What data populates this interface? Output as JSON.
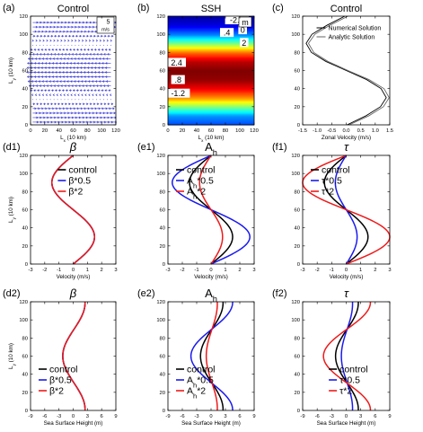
{
  "chart_data": [
    {
      "id": "a",
      "panel_label": "(a)",
      "title": "Control",
      "type": "quiver",
      "xlabel": "Lx (10 km)",
      "ylabel": "Ly (10 km)",
      "xlim": [
        0,
        120
      ],
      "ylim": [
        0,
        120
      ],
      "xticks": [
        0,
        20,
        40,
        60,
        80,
        100,
        120
      ],
      "yticks": [
        0,
        20,
        40,
        60,
        80,
        100,
        120
      ],
      "reference_vector": {
        "value": "5",
        "unit": "m/s"
      },
      "vector_color": "#3a3ad8",
      "field": {
        "velocity": "u(y) = 1.5*cos(2*pi*y/120)",
        "ymin": 0,
        "ymax": 120,
        "umax": 1.5
      }
    },
    {
      "id": "b",
      "panel_label": "(b)",
      "title": "SSH",
      "type": "heatmap",
      "xlabel": "Lx (10 km)",
      "ylabel": "",
      "xlim": [
        0,
        120
      ],
      "ylim": [
        0,
        120
      ],
      "xticks": [
        0,
        20,
        40,
        60,
        80,
        100,
        120
      ],
      "yticks": [
        0,
        20,
        40,
        60,
        80,
        100,
        120
      ],
      "unit_label": "m",
      "contour_labels": [
        "-2.4",
        "0",
        ".4",
        "2",
        "2.4",
        ".8",
        "-1.2"
      ],
      "ssh_profile": {
        "y": [
          0,
          10,
          20,
          30,
          40,
          50,
          60,
          70,
          80,
          90,
          100,
          110,
          120
        ],
        "value": [
          -1.6,
          -1.2,
          0.0,
          1.2,
          2.0,
          2.5,
          2.6,
          2.3,
          1.4,
          0.0,
          -1.3,
          -2.1,
          -2.4
        ]
      },
      "color_range": [
        -2.6,
        2.6
      ]
    },
    {
      "id": "c",
      "panel_label": "(c)",
      "title": "Control",
      "type": "line",
      "xlabel": "Zonal Velocity (m/s)",
      "ylabel": "",
      "xlim": [
        -1.5,
        1.5
      ],
      "ylim": [
        0,
        120
      ],
      "xticks": [
        -1.5,
        -1.0,
        -0.5,
        0.0,
        0.5,
        1.0,
        1.5
      ],
      "yticks": [
        0,
        20,
        40,
        60,
        80,
        100,
        120
      ],
      "legend": "top-right",
      "series": [
        {
          "name": "Numerical Solution",
          "style": "solid",
          "color": "#000000",
          "y": [
            0,
            10,
            20,
            30,
            40,
            50,
            60,
            70,
            80,
            90,
            100,
            110,
            120
          ],
          "x": [
            0.03,
            0.68,
            1.18,
            1.38,
            1.2,
            0.7,
            0.0,
            -0.7,
            -1.2,
            -1.38,
            -1.18,
            -0.66,
            -0.05
          ]
        },
        {
          "name": "Analytic Solution",
          "style": "solid",
          "color": "#666666",
          "y": [
            0,
            10,
            20,
            30,
            40,
            50,
            60,
            70,
            80,
            90,
            100,
            110,
            120
          ],
          "x": [
            0.1,
            0.78,
            1.28,
            1.48,
            1.3,
            0.78,
            0.06,
            -0.63,
            -1.12,
            -1.3,
            -1.08,
            -0.56,
            0.06
          ]
        }
      ]
    },
    {
      "id": "d1",
      "panel_label": "(d1)",
      "title": "β",
      "type": "line",
      "xlabel": "Velocity (m/s)",
      "ylabel": "Ly (10 km)",
      "xlim": [
        -3.0,
        3.0
      ],
      "ylim": [
        0,
        120
      ],
      "xticks": [
        -3.0,
        -2.0,
        -1.0,
        0.0,
        1.0,
        2.0,
        3.0
      ],
      "yticks": [
        0,
        20,
        40,
        60,
        80,
        100,
        120
      ],
      "legend": "top-right",
      "series": [
        {
          "name": "control",
          "color": "#000000",
          "amp": 1.5
        },
        {
          "name": "β*0.5",
          "color": "#1a1aee",
          "amp": 1.5
        },
        {
          "name": "β*2",
          "color": "#ee1a1a",
          "amp": 1.5
        }
      ]
    },
    {
      "id": "e1",
      "panel_label": "(e1)",
      "title": "Ah",
      "type": "line",
      "xlabel": "Velocity (m/s)",
      "ylabel": "",
      "xlim": [
        -3.0,
        3.0
      ],
      "ylim": [
        0,
        120
      ],
      "xticks": [
        -3.0,
        -2.0,
        -1.0,
        0.0,
        1.0,
        2.0,
        3.0
      ],
      "yticks": [
        0,
        20,
        40,
        60,
        80,
        100,
        120
      ],
      "legend": "top-left",
      "series": [
        {
          "name": "control",
          "color": "#000000",
          "amp": 1.5
        },
        {
          "name": "Ah*0.5",
          "color": "#1a1aee",
          "amp": 2.7
        },
        {
          "name": "Ah*2",
          "color": "#ee1a1a",
          "amp": 0.8
        }
      ]
    },
    {
      "id": "f1",
      "panel_label": "(f1)",
      "title": "τ",
      "type": "line",
      "xlabel": "Velocity (m/s)",
      "ylabel": "",
      "xlim": [
        -3.0,
        3.0
      ],
      "ylim": [
        0,
        120
      ],
      "xticks": [
        -3.0,
        -2.0,
        -1.0,
        0.0,
        1.0,
        2.0,
        3.0
      ],
      "yticks": [
        0,
        20,
        40,
        60,
        80,
        100,
        120
      ],
      "legend": "top-left",
      "series": [
        {
          "name": "control",
          "color": "#000000",
          "amp": 1.5
        },
        {
          "name": "τ*0.5",
          "color": "#1a1aee",
          "amp": 0.75
        },
        {
          "name": "τ*2",
          "color": "#ee1a1a",
          "amp": 3.0
        }
      ]
    },
    {
      "id": "d2",
      "panel_label": "(d2)",
      "title": "β",
      "type": "line",
      "xlabel": "Sea Surface Height (m)",
      "ylabel": "Ly (10 km)",
      "xlim": [
        -9.0,
        9.0
      ],
      "ylim": [
        0,
        120
      ],
      "xticks": [
        -9.0,
        -6.0,
        -3.0,
        0.0,
        3.0,
        6.0,
        9.0
      ],
      "yticks": [
        0,
        20,
        40,
        60,
        80,
        100,
        120
      ],
      "legend": "bottom-left",
      "series": [
        {
          "name": "control",
          "color": "#000000",
          "amp": 2.5
        },
        {
          "name": "β*0.5",
          "color": "#1a1aee",
          "amp": 2.5
        },
        {
          "name": "β*2",
          "color": "#ee1a1a",
          "amp": 2.5
        }
      ]
    },
    {
      "id": "e2",
      "panel_label": "(e2)",
      "title": "Ah",
      "type": "line",
      "xlabel": "Sea Surface Height (m)",
      "ylabel": "",
      "xlim": [
        -9.0,
        9.0
      ],
      "ylim": [
        0,
        120
      ],
      "xticks": [
        -9.0,
        -6.0,
        -3.0,
        0.0,
        3.0,
        6.0,
        9.0
      ],
      "yticks": [
        0,
        20,
        40,
        60,
        80,
        100,
        120
      ],
      "legend": "bottom-left",
      "series": [
        {
          "name": "control",
          "color": "#000000",
          "amp": 2.5
        },
        {
          "name": "Ah*0.5",
          "color": "#1a1aee",
          "amp": 4.5
        },
        {
          "name": "Ah*2",
          "color": "#ee1a1a",
          "amp": 1.3
        }
      ]
    },
    {
      "id": "f2",
      "panel_label": "(f2)",
      "title": "τ",
      "type": "line",
      "xlabel": "Sea Surface Height (m)",
      "ylabel": "",
      "xlim": [
        -9.0,
        9.0
      ],
      "ylim": [
        0,
        120
      ],
      "xticks": [
        -9.0,
        -6.0,
        -3.0,
        0.0,
        3.0,
        6.0,
        9.0
      ],
      "yticks": [
        0,
        20,
        40,
        60,
        80,
        100,
        120
      ],
      "legend": "bottom-right",
      "series": [
        {
          "name": "control",
          "color": "#000000",
          "amp": 2.5
        },
        {
          "name": "τ*0.5",
          "color": "#1a1aee",
          "amp": 1.3
        },
        {
          "name": "τ*2",
          "color": "#ee1a1a",
          "amp": 5.0
        }
      ]
    }
  ]
}
